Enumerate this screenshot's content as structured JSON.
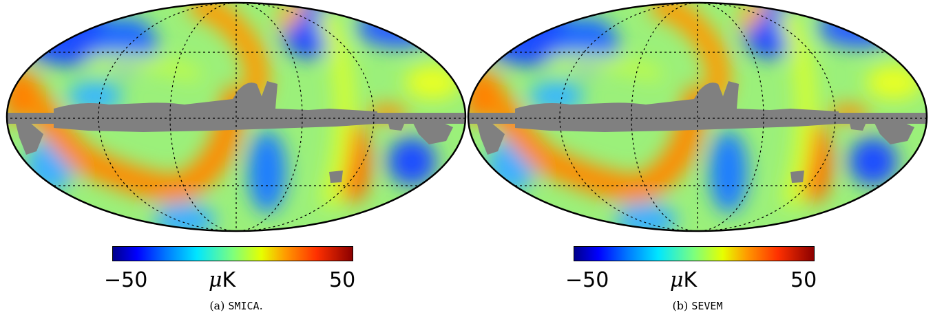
{
  "figure": {
    "panels": [
      {
        "id": "a",
        "colorbar": {
          "min_label": "−50",
          "unit_mu": "μ",
          "unit_K": "K",
          "max_label": "50"
        },
        "caption": {
          "prefix": "(a)",
          "method": "SMICA",
          "suffix": "."
        }
      },
      {
        "id": "b",
        "colorbar": {
          "min_label": "−50",
          "unit_mu": "μ",
          "unit_K": "K",
          "max_label": "50"
        },
        "caption": {
          "prefix": "(b)",
          "method": "SEVEM",
          "suffix": ""
        }
      }
    ],
    "colors": {
      "mask": "#808080",
      "graticule": "#000000",
      "colormap": [
        "#00008b",
        "#0000ff",
        "#0077ff",
        "#00e6ff",
        "#7dff7d",
        "#e6ff00",
        "#ff9a00",
        "#ff3000",
        "#8b0000"
      ]
    }
  }
}
